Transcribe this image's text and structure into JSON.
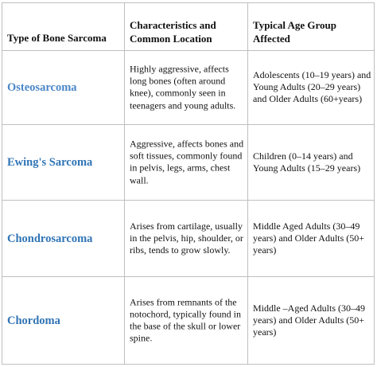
{
  "table": {
    "headers": [
      "Type of Bone Sarcoma",
      "Characteristics and Common Location",
      "Typical Age Group Affected"
    ],
    "rows": [
      {
        "name": "Osteosarcoma",
        "characteristics": "Highly aggressive, affects long bones (often around knee), commonly seen in teenagers and young adults.",
        "age_group": "Adolescents (10–19 years) and Young Adults (20–29 years) and Older Adults (60+years)"
      },
      {
        "name": "Ewing's Sarcoma",
        "characteristics": "Aggressive, affects bones and soft tissues, commonly found in pelvis, legs, arms, chest wall.",
        "age_group": "Children (0–14 years) and Young Adults (15–29 years)"
      },
      {
        "name": "Chondrosarcoma",
        "characteristics": "Arises from cartilage, usually in the pelvis, hip, shoulder, or ribs, tends to grow slowly.",
        "age_group": "Middle Aged Adults (30–49 years) and Older Adults (50+ years)"
      },
      {
        "name": "Chordoma",
        "characteristics": "Arises from remnants of the notochord, typically found in the base of the skull or lower spine.",
        "age_group": "Middle –Aged Adults (30–49 years) and Older Adults (50+ years)"
      }
    ]
  },
  "colors": {
    "name_text": "#2f74b5",
    "body_text": "#111111",
    "grid_line": "#bfbfbf"
  }
}
